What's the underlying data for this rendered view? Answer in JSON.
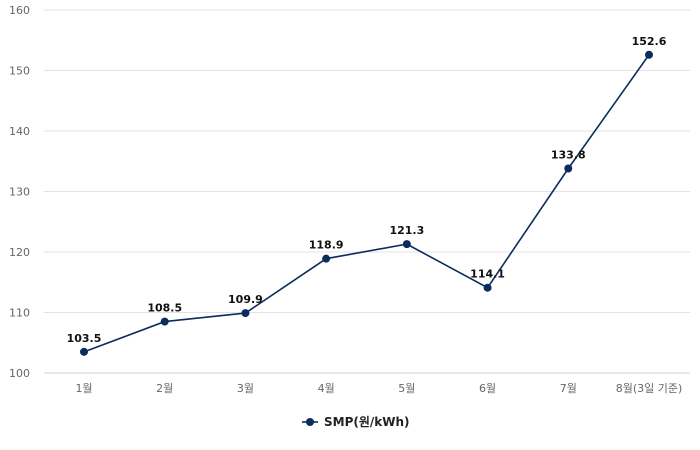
{
  "chart_data": {
    "type": "line",
    "categories": [
      "1월",
      "2월",
      "3월",
      "4월",
      "5월",
      "6월",
      "7월",
      "8월(3일 기준)"
    ],
    "series": [
      {
        "name": "SMP(원/kWh)",
        "values": [
          103.5,
          108.5,
          109.9,
          118.9,
          121.3,
          114.1,
          133.8,
          152.6
        ],
        "color": "#0b2d5e"
      }
    ],
    "ylim": [
      100,
      160
    ],
    "yticks": [
      100,
      110,
      120,
      130,
      140,
      150,
      160
    ],
    "grid": true,
    "legend_position": "bottom-center",
    "data_labels": true
  }
}
